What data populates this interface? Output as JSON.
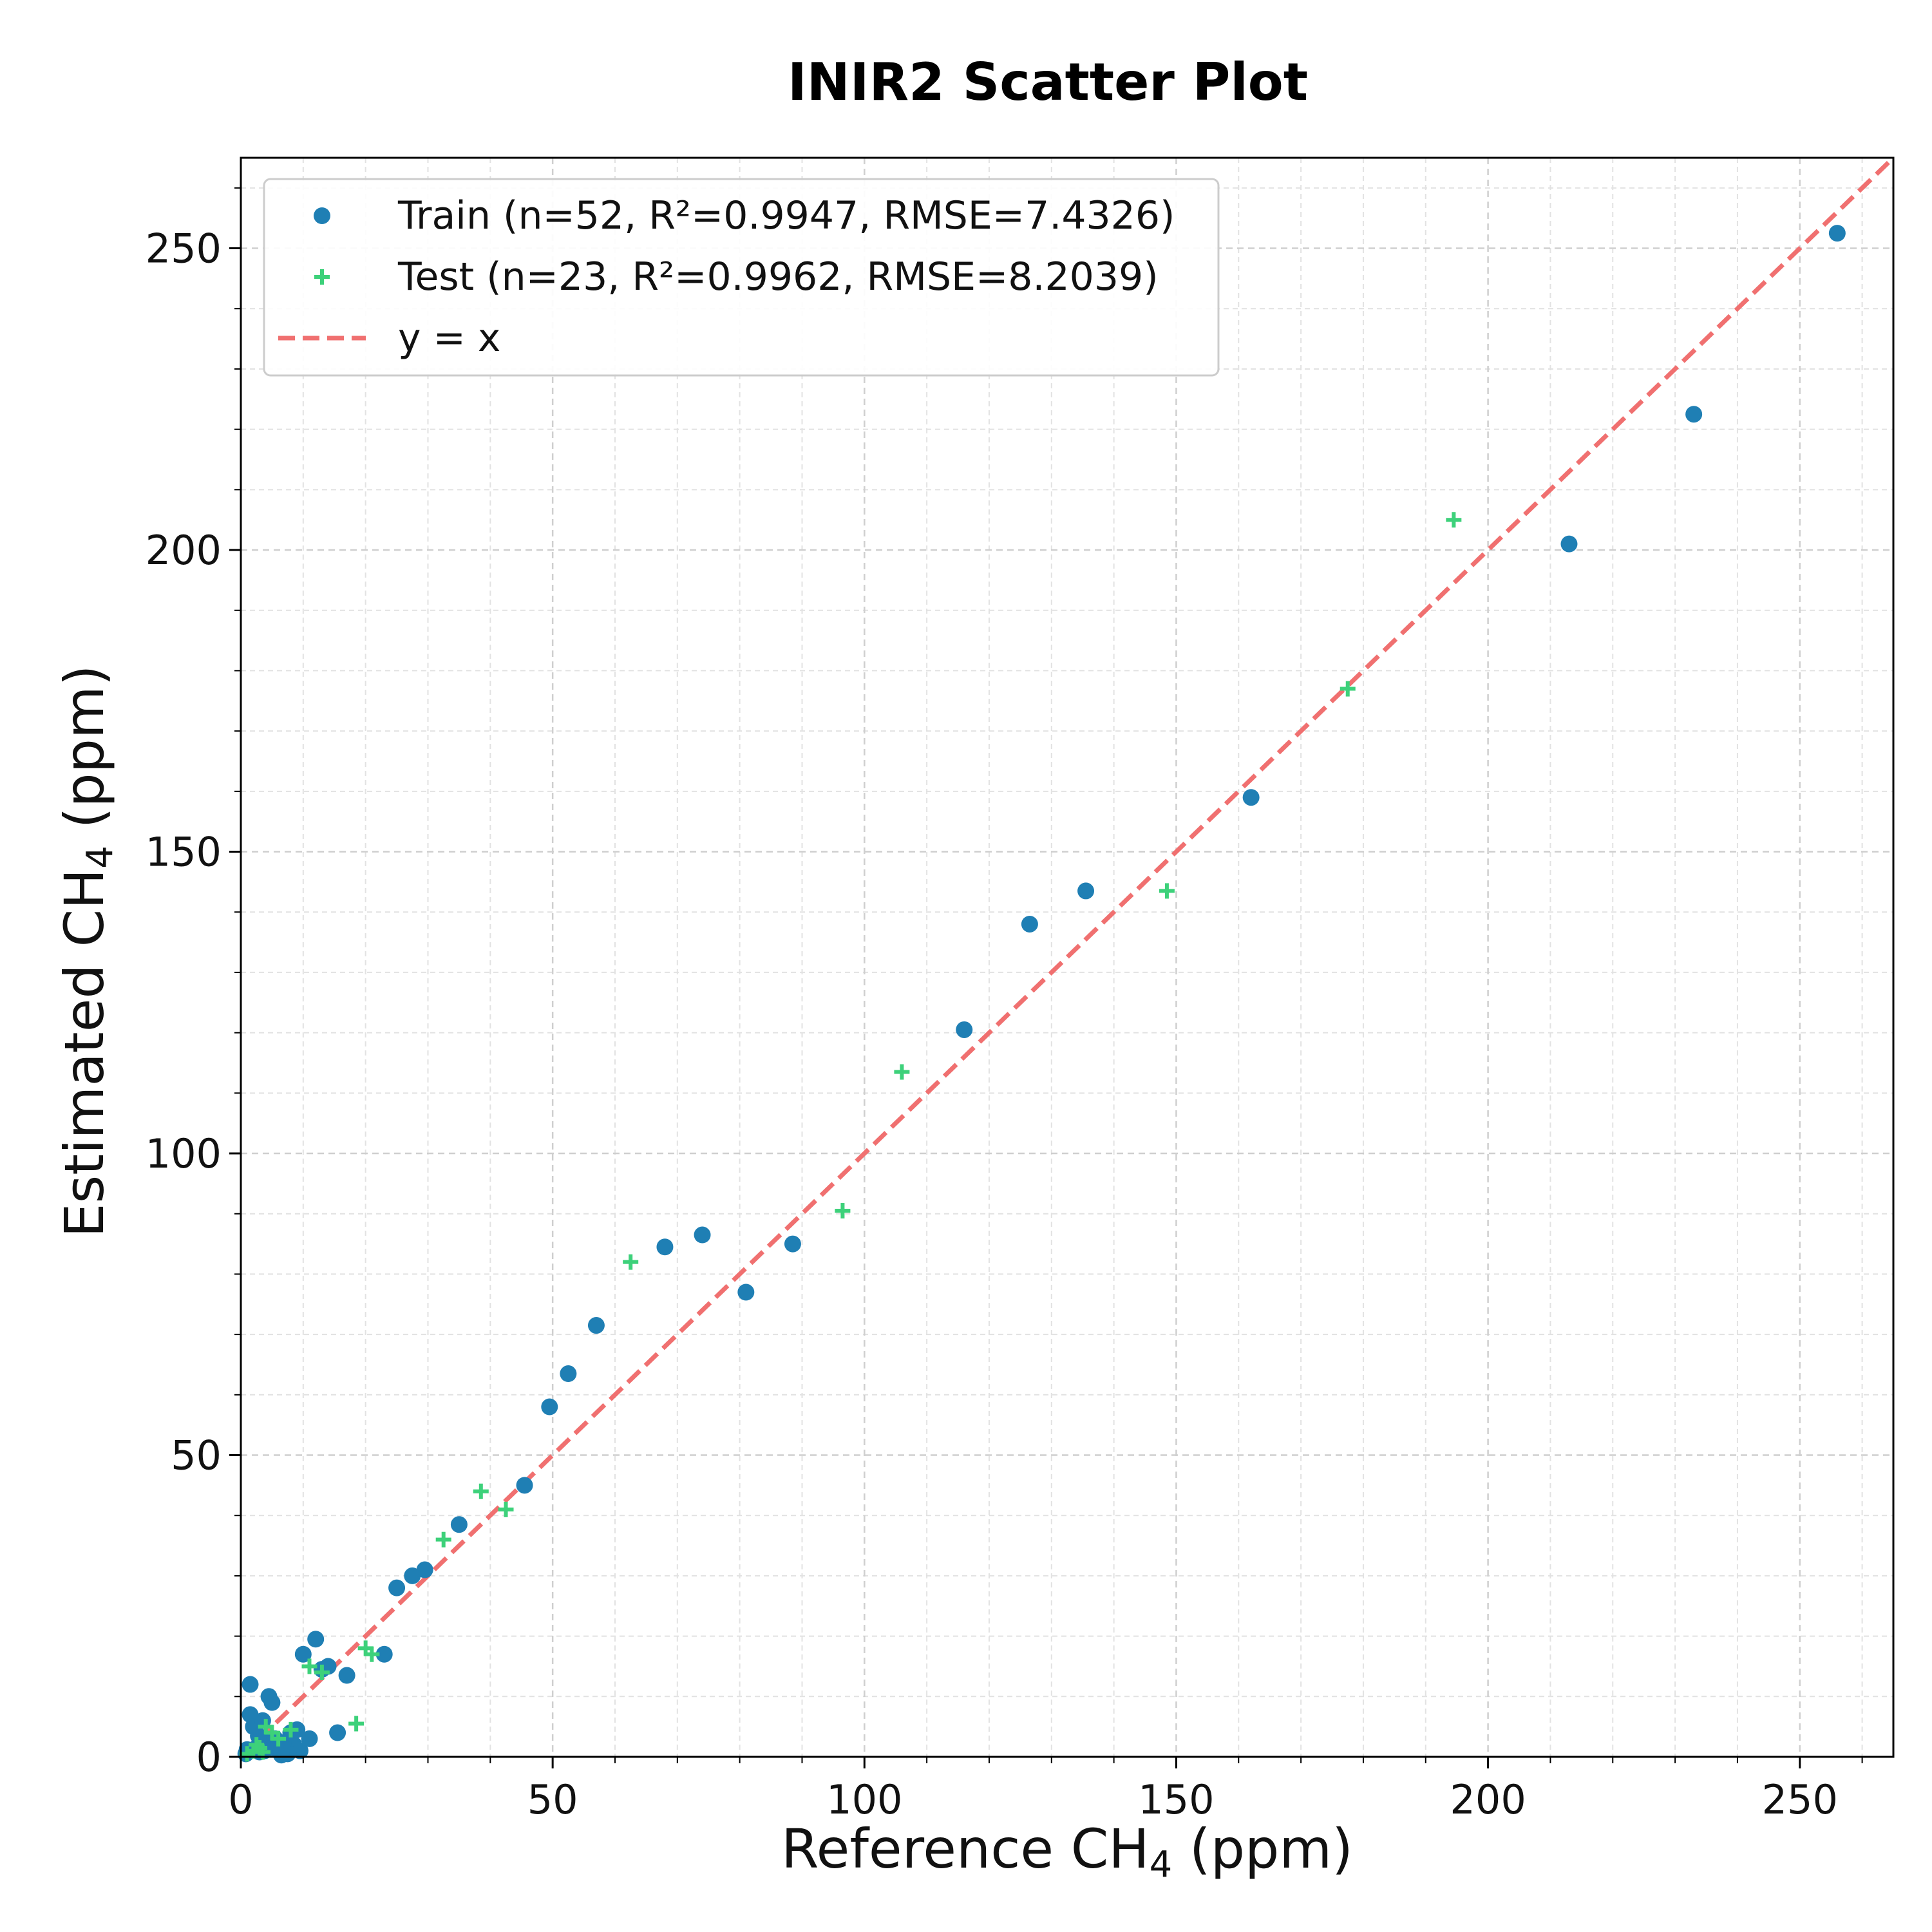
{
  "chart_data": {
    "type": "scatter",
    "title": "INIR2 Scatter Plot",
    "xlabel": "Reference CH",
    "xlabel_sub": "4",
    "xlabel_unit": " (ppm)",
    "ylabel": "Estimated CH",
    "ylabel_sub": "4",
    "ylabel_unit": " (ppm)",
    "xlim": [
      0,
      265
    ],
    "ylim": [
      0,
      265
    ],
    "xticks": [
      0,
      50,
      100,
      150,
      200,
      250
    ],
    "yticks": [
      0,
      50,
      100,
      150,
      200,
      250
    ],
    "grid": true,
    "legend_position": "top-left",
    "series": [
      {
        "name": "Train (n=52, R²=0.9947, RMSE=7.4326)",
        "marker": "circle",
        "color": "#1f7fb4",
        "points": [
          [
            1.5,
            12
          ],
          [
            1.5,
            7
          ],
          [
            2,
            5
          ],
          [
            3.5,
            6
          ],
          [
            4.5,
            10
          ],
          [
            5,
            9
          ],
          [
            5.5,
            3
          ],
          [
            6,
            1
          ],
          [
            7,
            2
          ],
          [
            7.5,
            0.5
          ],
          [
            8,
            4
          ],
          [
            9,
            4.5
          ],
          [
            9.5,
            1
          ],
          [
            10,
            17
          ],
          [
            12,
            19.5
          ],
          [
            14,
            15
          ],
          [
            15.5,
            4
          ],
          [
            17,
            13.5
          ],
          [
            23,
            17
          ],
          [
            25,
            28
          ],
          [
            27.5,
            30
          ],
          [
            29.5,
            31
          ],
          [
            35,
            38.5
          ],
          [
            45.5,
            45
          ],
          [
            49.5,
            58
          ],
          [
            52.5,
            63.5
          ],
          [
            57,
            71.5
          ],
          [
            68,
            84.5
          ],
          [
            74,
            86.5
          ],
          [
            81,
            77
          ],
          [
            88.5,
            85
          ],
          [
            116,
            120.5
          ],
          [
            126.5,
            138
          ],
          [
            135.5,
            143.5
          ],
          [
            162,
            159
          ],
          [
            213,
            201
          ],
          [
            233,
            222.5
          ],
          [
            256,
            252.5
          ],
          [
            2.5,
            1.5
          ],
          [
            3,
            0.8
          ],
          [
            4,
            2.5
          ],
          [
            6.5,
            0.3
          ],
          [
            8.5,
            2
          ],
          [
            11,
            3
          ],
          [
            13,
            14.5
          ],
          [
            1,
            1.2
          ],
          [
            2.8,
            3.5
          ],
          [
            5.8,
            1.8
          ],
          [
            7.8,
            3
          ],
          [
            0.8,
            0.5
          ],
          [
            3.8,
            1
          ],
          [
            6.8,
            2.2
          ]
        ]
      },
      {
        "name": "Test (n=23, R²=0.9962, RMSE=8.2039)",
        "marker": "plus",
        "color": "#3dd17a",
        "points": [
          [
            1,
            0.5
          ],
          [
            2,
            1
          ],
          [
            3,
            1.5
          ],
          [
            4,
            5
          ],
          [
            5,
            4
          ],
          [
            11,
            15
          ],
          [
            13,
            14
          ],
          [
            18.5,
            5.5
          ],
          [
            20,
            18
          ],
          [
            21,
            17
          ],
          [
            32.5,
            36
          ],
          [
            38.5,
            44
          ],
          [
            42.5,
            41
          ],
          [
            62.5,
            82
          ],
          [
            96.5,
            90.5
          ],
          [
            106,
            113.5
          ],
          [
            148.5,
            143.5
          ],
          [
            177.5,
            177
          ],
          [
            194.5,
            205
          ],
          [
            2.5,
            2
          ],
          [
            6,
            3
          ],
          [
            8,
            4.5
          ],
          [
            3.5,
            0.8
          ]
        ]
      }
    ],
    "reference_line": {
      "name": "y = x",
      "color": "#f07070",
      "style": "dashed"
    }
  }
}
